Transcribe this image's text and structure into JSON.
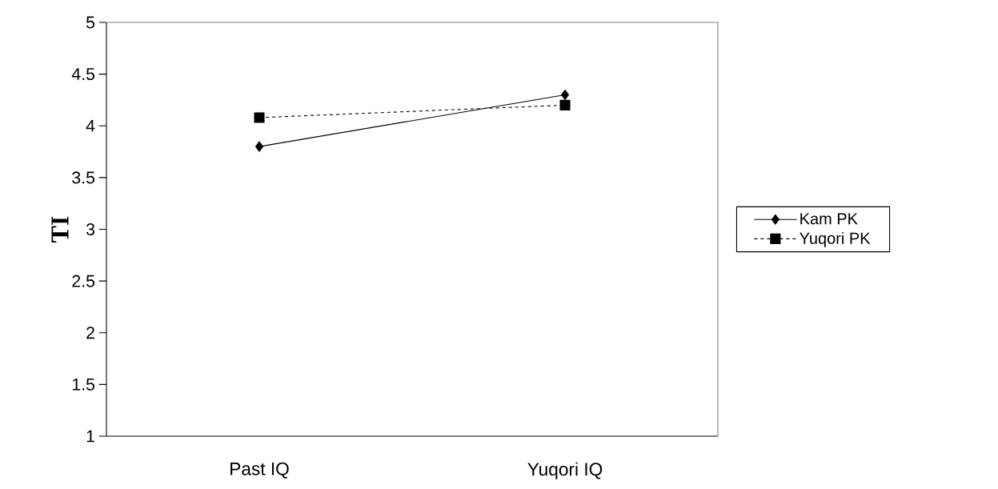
{
  "chart_data": {
    "type": "line",
    "ylabel": "TI",
    "categories": [
      "Past IQ",
      "Yuqori IQ"
    ],
    "series": [
      {
        "name": "Kam PK",
        "color": "#000000",
        "values": [
          3.8,
          4.3
        ],
        "marker": "diamond",
        "line_style": "solid"
      },
      {
        "name": "Yuqori PK",
        "color": "#000000",
        "values": [
          4.08,
          4.2
        ],
        "marker": "square",
        "line_style": "dashed"
      }
    ],
    "ylim": [
      1,
      5
    ],
    "yticks": [
      1,
      1.5,
      2,
      2.5,
      3,
      3.5,
      4,
      4.5,
      5
    ],
    "grid": false,
    "legend": "right"
  }
}
